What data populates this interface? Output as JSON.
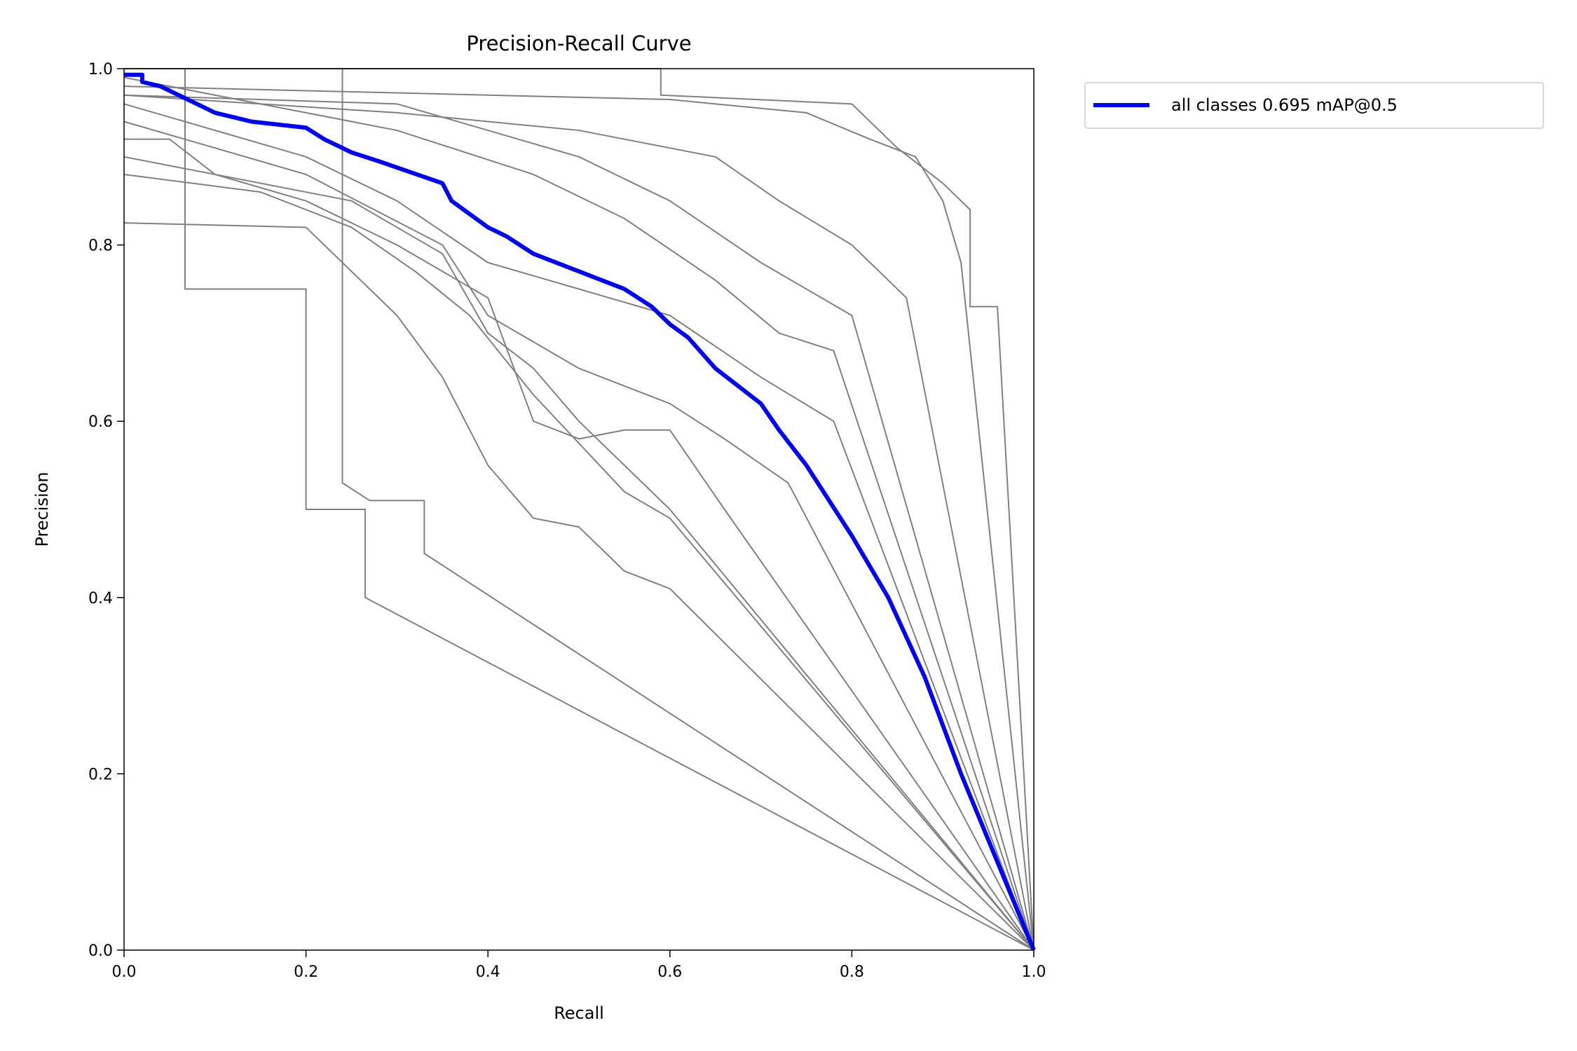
{
  "chart_data": {
    "type": "line",
    "title": "Precision-Recall Curve",
    "xlabel": "Recall",
    "ylabel": "Precision",
    "xlim": [
      0,
      1
    ],
    "ylim": [
      0,
      1
    ],
    "xticks": [
      "0.0",
      "0.2",
      "0.4",
      "0.6",
      "0.8",
      "1.0"
    ],
    "yticks": [
      "0.0",
      "0.2",
      "0.4",
      "0.6",
      "0.8",
      "1.0"
    ],
    "grid": false,
    "legend_position": "outside-top-right",
    "series": [
      {
        "name": "all classes 0.695 mAP@0.5",
        "color": "#0000ff",
        "points": [
          [
            0,
            0.993
          ],
          [
            0.02,
            0.993
          ],
          [
            0.02,
            0.985
          ],
          [
            0.04,
            0.98
          ],
          [
            0.06,
            0.97
          ],
          [
            0.07,
            0.965
          ],
          [
            0.09,
            0.955
          ],
          [
            0.1,
            0.95
          ],
          [
            0.12,
            0.945
          ],
          [
            0.14,
            0.94
          ],
          [
            0.2,
            0.933
          ],
          [
            0.22,
            0.92
          ],
          [
            0.25,
            0.905
          ],
          [
            0.28,
            0.895
          ],
          [
            0.35,
            0.87
          ],
          [
            0.36,
            0.85
          ],
          [
            0.4,
            0.82
          ],
          [
            0.42,
            0.81
          ],
          [
            0.45,
            0.79
          ],
          [
            0.5,
            0.77
          ],
          [
            0.55,
            0.75
          ],
          [
            0.58,
            0.73
          ],
          [
            0.6,
            0.71
          ],
          [
            0.62,
            0.695
          ],
          [
            0.65,
            0.66
          ],
          [
            0.7,
            0.62
          ],
          [
            0.72,
            0.59
          ],
          [
            0.75,
            0.55
          ],
          [
            0.8,
            0.47
          ],
          [
            0.84,
            0.4
          ],
          [
            0.88,
            0.31
          ],
          [
            0.92,
            0.2
          ],
          [
            0.96,
            0.1
          ],
          [
            1.0,
            0.0
          ]
        ]
      },
      {
        "color": "#808080",
        "points": [
          [
            0,
            1
          ],
          [
            0.067,
            1
          ],
          [
            0.067,
            0.75
          ],
          [
            0.2,
            0.75
          ],
          [
            0.2,
            0.5
          ],
          [
            0.265,
            0.5
          ],
          [
            0.265,
            0.4
          ],
          [
            1,
            0
          ]
        ]
      },
      {
        "color": "#808080",
        "points": [
          [
            0,
            1
          ],
          [
            0.24,
            1
          ],
          [
            0.24,
            0.53
          ],
          [
            0.27,
            0.51
          ],
          [
            0.33,
            0.51
          ],
          [
            0.33,
            0.45
          ],
          [
            1,
            0
          ]
        ]
      },
      {
        "color": "#808080",
        "points": [
          [
            0,
            0.825
          ],
          [
            0.2,
            0.82
          ],
          [
            0.25,
            0.77
          ],
          [
            0.3,
            0.72
          ],
          [
            0.35,
            0.65
          ],
          [
            0.4,
            0.55
          ],
          [
            0.45,
            0.49
          ],
          [
            0.5,
            0.48
          ],
          [
            0.55,
            0.43
          ],
          [
            0.6,
            0.41
          ],
          [
            1,
            0
          ]
        ]
      },
      {
        "color": "#808080",
        "points": [
          [
            0,
            0.92
          ],
          [
            0.05,
            0.92
          ],
          [
            0.1,
            0.88
          ],
          [
            0.2,
            0.85
          ],
          [
            0.3,
            0.8
          ],
          [
            0.4,
            0.74
          ],
          [
            0.45,
            0.6
          ],
          [
            0.5,
            0.58
          ],
          [
            0.55,
            0.59
          ],
          [
            0.6,
            0.59
          ],
          [
            0.66,
            0.5
          ],
          [
            1,
            0
          ]
        ]
      },
      {
        "color": "#808080",
        "points": [
          [
            0,
            0.96
          ],
          [
            0.2,
            0.9
          ],
          [
            0.3,
            0.85
          ],
          [
            0.4,
            0.78
          ],
          [
            0.5,
            0.75
          ],
          [
            0.6,
            0.72
          ],
          [
            0.7,
            0.65
          ],
          [
            0.78,
            0.6
          ],
          [
            1,
            0
          ]
        ]
      },
      {
        "color": "#808080",
        "points": [
          [
            0,
            0.97
          ],
          [
            0.3,
            0.96
          ],
          [
            0.5,
            0.9
          ],
          [
            0.6,
            0.85
          ],
          [
            0.7,
            0.78
          ],
          [
            0.8,
            0.72
          ],
          [
            1,
            0
          ]
        ]
      },
      {
        "color": "#808080",
        "points": [
          [
            0,
            0.98
          ],
          [
            0.4,
            0.97
          ],
          [
            0.6,
            0.965
          ],
          [
            0.75,
            0.95
          ],
          [
            0.82,
            0.92
          ],
          [
            0.87,
            0.9
          ],
          [
            0.9,
            0.85
          ],
          [
            0.92,
            0.78
          ],
          [
            1,
            0
          ]
        ]
      },
      {
        "color": "#808080",
        "points": [
          [
            0,
            1
          ],
          [
            0.59,
            1
          ],
          [
            0.59,
            0.97
          ],
          [
            0.8,
            0.96
          ],
          [
            0.85,
            0.91
          ],
          [
            0.9,
            0.87
          ],
          [
            0.93,
            0.84
          ],
          [
            0.93,
            0.73
          ],
          [
            0.96,
            0.73
          ],
          [
            1,
            0
          ]
        ]
      },
      {
        "color": "#808080",
        "points": [
          [
            0,
            0.97
          ],
          [
            0.3,
            0.95
          ],
          [
            0.5,
            0.93
          ],
          [
            0.65,
            0.9
          ],
          [
            0.72,
            0.85
          ],
          [
            0.8,
            0.8
          ],
          [
            0.86,
            0.74
          ],
          [
            1,
            0
          ]
        ]
      },
      {
        "color": "#808080",
        "points": [
          [
            0,
            0.94
          ],
          [
            0.2,
            0.88
          ],
          [
            0.35,
            0.8
          ],
          [
            0.4,
            0.72
          ],
          [
            0.5,
            0.66
          ],
          [
            0.6,
            0.62
          ],
          [
            0.66,
            0.58
          ],
          [
            0.73,
            0.53
          ],
          [
            1,
            0
          ]
        ]
      },
      {
        "color": "#808080",
        "points": [
          [
            0,
            0.9
          ],
          [
            0.25,
            0.85
          ],
          [
            0.35,
            0.79
          ],
          [
            0.4,
            0.7
          ],
          [
            0.45,
            0.66
          ],
          [
            0.5,
            0.6
          ],
          [
            0.55,
            0.55
          ],
          [
            0.6,
            0.5
          ],
          [
            1,
            0
          ]
        ]
      },
      {
        "color": "#808080",
        "points": [
          [
            0,
            0.99
          ],
          [
            0.1,
            0.97
          ],
          [
            0.3,
            0.93
          ],
          [
            0.45,
            0.88
          ],
          [
            0.55,
            0.83
          ],
          [
            0.65,
            0.76
          ],
          [
            0.72,
            0.7
          ],
          [
            0.78,
            0.68
          ],
          [
            1,
            0
          ]
        ]
      },
      {
        "color": "#808080",
        "points": [
          [
            0,
            0.88
          ],
          [
            0.15,
            0.86
          ],
          [
            0.25,
            0.82
          ],
          [
            0.32,
            0.77
          ],
          [
            0.38,
            0.72
          ],
          [
            0.45,
            0.63
          ],
          [
            0.55,
            0.52
          ],
          [
            0.6,
            0.49
          ],
          [
            1,
            0
          ]
        ]
      }
    ]
  }
}
